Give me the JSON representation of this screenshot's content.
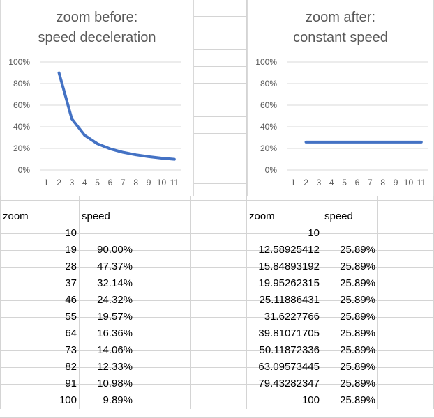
{
  "colors": {
    "line": "#4472c4",
    "gridline": "#d9d9d9",
    "axis_text": "#595959",
    "cell_border": "#d4d4d4"
  },
  "table_left": {
    "header": {
      "zoom": "zoom",
      "speed": "speed"
    },
    "rows": [
      {
        "zoom": "10",
        "speed": ""
      },
      {
        "zoom": "19",
        "speed": "90.00%"
      },
      {
        "zoom": "28",
        "speed": "47.37%"
      },
      {
        "zoom": "37",
        "speed": "32.14%"
      },
      {
        "zoom": "46",
        "speed": "24.32%"
      },
      {
        "zoom": "55",
        "speed": "19.57%"
      },
      {
        "zoom": "64",
        "speed": "16.36%"
      },
      {
        "zoom": "73",
        "speed": "14.06%"
      },
      {
        "zoom": "82",
        "speed": "12.33%"
      },
      {
        "zoom": "91",
        "speed": "10.98%"
      },
      {
        "zoom": "100",
        "speed": "9.89%"
      }
    ]
  },
  "table_right": {
    "header": {
      "zoom": "zoom",
      "speed": "speed"
    },
    "rows": [
      {
        "zoom": "10",
        "speed": ""
      },
      {
        "zoom": "12.58925412",
        "speed": "25.89%"
      },
      {
        "zoom": "15.84893192",
        "speed": "25.89%"
      },
      {
        "zoom": "19.95262315",
        "speed": "25.89%"
      },
      {
        "zoom": "25.11886431",
        "speed": "25.89%"
      },
      {
        "zoom": "31.6227766",
        "speed": "25.89%"
      },
      {
        "zoom": "39.81071705",
        "speed": "25.89%"
      },
      {
        "zoom": "50.11872336",
        "speed": "25.89%"
      },
      {
        "zoom": "63.09573445",
        "speed": "25.89%"
      },
      {
        "zoom": "79.43282347",
        "speed": "25.89%"
      },
      {
        "zoom": "100",
        "speed": "25.89%"
      }
    ]
  },
  "chart_data": [
    {
      "type": "line",
      "title_line1": "zoom before:",
      "title_line2": "speed deceleration",
      "categories": [
        "1",
        "2",
        "3",
        "4",
        "5",
        "6",
        "7",
        "8",
        "9",
        "10",
        "11"
      ],
      "values": [
        null,
        0.9,
        0.4737,
        0.3214,
        0.2432,
        0.1957,
        0.1636,
        0.1406,
        0.1233,
        0.1098,
        0.0989
      ],
      "ylim": [
        0,
        1
      ],
      "yticks": [
        "0%",
        "20%",
        "40%",
        "60%",
        "80%",
        "100%"
      ],
      "grid": true,
      "legend": "none"
    },
    {
      "type": "line",
      "title_line1": "zoom after:",
      "title_line2": "constant speed",
      "categories": [
        "1",
        "2",
        "3",
        "4",
        "5",
        "6",
        "7",
        "8",
        "9",
        "10",
        "11"
      ],
      "values": [
        null,
        0.2589,
        0.2589,
        0.2589,
        0.2589,
        0.2589,
        0.2589,
        0.2589,
        0.2589,
        0.2589,
        0.2589
      ],
      "ylim": [
        0,
        1
      ],
      "yticks": [
        "0%",
        "20%",
        "40%",
        "60%",
        "80%",
        "100%"
      ],
      "grid": true,
      "legend": "none"
    }
  ]
}
